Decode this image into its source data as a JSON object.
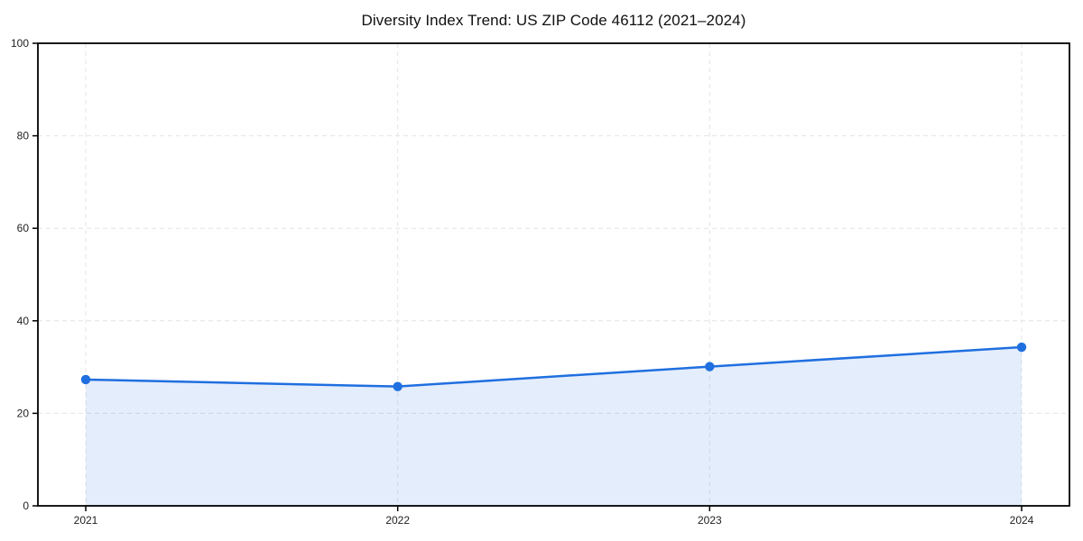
{
  "page": {
    "background": "#ffffff"
  },
  "chart_data": {
    "type": "line",
    "title": "Diversity Index Trend: US ZIP Code 46112 (2021–2024)",
    "categories": [
      "2021",
      "2022",
      "2023",
      "2024"
    ],
    "series": [
      {
        "name": "Diversity Index",
        "values": [
          27.3,
          25.8,
          30.1,
          34.3
        ]
      }
    ],
    "xlabel": "",
    "ylabel": "",
    "ylim": [
      0,
      100
    ],
    "yticks": [
      0,
      20,
      40,
      60,
      80,
      100
    ],
    "grid": "dashed",
    "legend": "none",
    "area_fill": true,
    "marker": "circle",
    "colors": {
      "line": "#1f6fe0",
      "marker": "#1f6fe0",
      "area": "rgba(31,111,224,0.12)",
      "grid": "#e4e4e4",
      "spine": "#000000",
      "tick_label": "#222222",
      "title": "#111111"
    }
  }
}
